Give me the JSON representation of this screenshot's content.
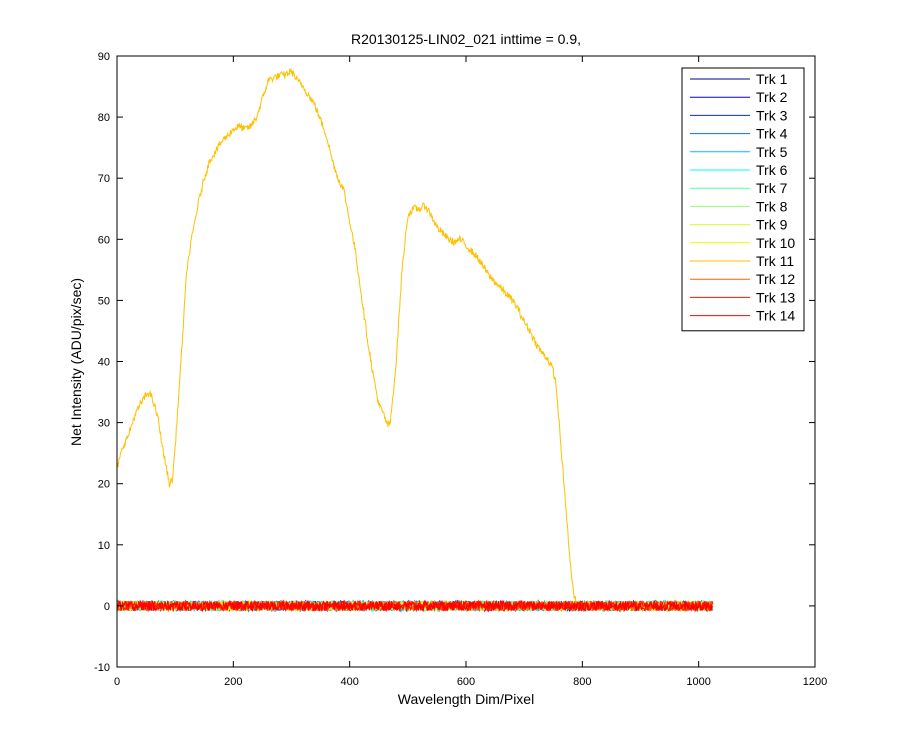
{
  "chart_data": {
    "type": "line",
    "title": "R20130125-LIN02_021 inttime = 0.9,",
    "xlabel": "Wavelength Dim/Pixel",
    "ylabel": "Net Intensity (ADU/pix/sec)",
    "xlim": [
      0,
      1200
    ],
    "ylim": [
      -10,
      90
    ],
    "xticks": [
      0,
      200,
      400,
      600,
      800,
      1000,
      1200
    ],
    "yticks": [
      -10,
      0,
      10,
      20,
      30,
      40,
      50,
      60,
      70,
      80,
      90
    ],
    "grid": false,
    "legend_position": "top-right",
    "noise_amplitude": 0.8,
    "x_range_points": [
      0,
      1024
    ],
    "series": [
      {
        "name": "Trk 1",
        "color": "#00008f",
        "values": "noise"
      },
      {
        "name": "Trk 2",
        "color": "#0000d9",
        "values": "noise"
      },
      {
        "name": "Trk 3",
        "color": "#0026ff",
        "values": "noise"
      },
      {
        "name": "Trk 4",
        "color": "#0070ff",
        "values": "noise"
      },
      {
        "name": "Trk 5",
        "color": "#00bbff",
        "values": "noise"
      },
      {
        "name": "Trk 6",
        "color": "#06ffe8",
        "values": "noise"
      },
      {
        "name": "Trk 7",
        "color": "#4cffb3",
        "values": "noise"
      },
      {
        "name": "Trk 8",
        "color": "#93ff6b",
        "values": "noise"
      },
      {
        "name": "Trk 9",
        "color": "#d9ff26",
        "values": "noise"
      },
      {
        "name": "Trk 10",
        "color": "#ffee00",
        "values": "noise"
      },
      {
        "name": "Trk 11",
        "color": "#ffc000",
        "values": [
          [
            0,
            22.5
          ],
          [
            10,
            26
          ],
          [
            20,
            28
          ],
          [
            30,
            31
          ],
          [
            40,
            33
          ],
          [
            50,
            34.5
          ],
          [
            55,
            35
          ],
          [
            60,
            34
          ],
          [
            70,
            31
          ],
          [
            80,
            25
          ],
          [
            90,
            20
          ],
          [
            95,
            20.5
          ],
          [
            100,
            26
          ],
          [
            110,
            40
          ],
          [
            120,
            55
          ],
          [
            130,
            61
          ],
          [
            140,
            66
          ],
          [
            150,
            70
          ],
          [
            160,
            73
          ],
          [
            170,
            74.5
          ],
          [
            180,
            76
          ],
          [
            190,
            77
          ],
          [
            200,
            78
          ],
          [
            210,
            78.5
          ],
          [
            220,
            78
          ],
          [
            230,
            78.5
          ],
          [
            240,
            80
          ],
          [
            250,
            83
          ],
          [
            260,
            86
          ],
          [
            270,
            86.5
          ],
          [
            280,
            86.8
          ],
          [
            290,
            87
          ],
          [
            300,
            87.5
          ],
          [
            310,
            86
          ],
          [
            320,
            85
          ],
          [
            330,
            83.5
          ],
          [
            340,
            82
          ],
          [
            350,
            79.5
          ],
          [
            360,
            77
          ],
          [
            370,
            73
          ],
          [
            380,
            70
          ],
          [
            390,
            68
          ],
          [
            400,
            63
          ],
          [
            410,
            58
          ],
          [
            420,
            51
          ],
          [
            430,
            44
          ],
          [
            440,
            38
          ],
          [
            450,
            33
          ],
          [
            460,
            31
          ],
          [
            465,
            29.5
          ],
          [
            470,
            30
          ],
          [
            480,
            40
          ],
          [
            490,
            55
          ],
          [
            500,
            64
          ],
          [
            510,
            65
          ],
          [
            520,
            65
          ],
          [
            530,
            65.5
          ],
          [
            540,
            64
          ],
          [
            550,
            62
          ],
          [
            560,
            61
          ],
          [
            570,
            60
          ],
          [
            580,
            59.5
          ],
          [
            590,
            60
          ],
          [
            600,
            59
          ],
          [
            610,
            58
          ],
          [
            620,
            57
          ],
          [
            630,
            55.5
          ],
          [
            640,
            54
          ],
          [
            650,
            53
          ],
          [
            660,
            52
          ],
          [
            670,
            51
          ],
          [
            680,
            50
          ],
          [
            690,
            48.5
          ],
          [
            700,
            46.5
          ],
          [
            710,
            45
          ],
          [
            720,
            43
          ],
          [
            730,
            41.5
          ],
          [
            740,
            40.5
          ],
          [
            750,
            38.5
          ],
          [
            755,
            36
          ],
          [
            760,
            30
          ],
          [
            770,
            18
          ],
          [
            780,
            6
          ],
          [
            785,
            2
          ],
          [
            790,
            0.3
          ],
          [
            800,
            0
          ],
          [
            1024,
            0
          ]
        ]
      },
      {
        "name": "Trk 12",
        "color": "#ff5b00",
        "values": "noise"
      },
      {
        "name": "Trk 13",
        "color": "#ff1300",
        "values": "noise"
      },
      {
        "name": "Trk 14",
        "color": "#ff0000",
        "values": "noise"
      }
    ]
  }
}
